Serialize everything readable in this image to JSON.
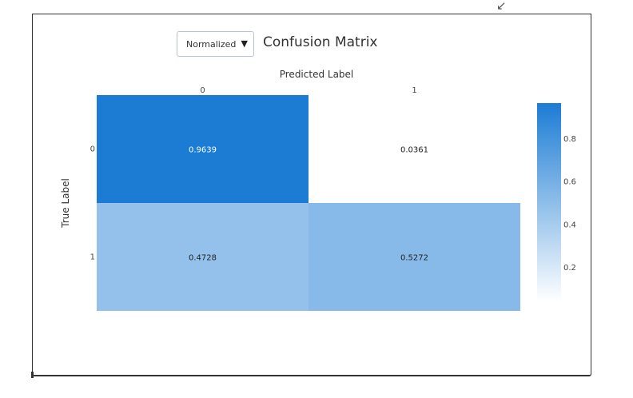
{
  "window": {
    "resize_glyph": "↙"
  },
  "controls": {
    "normalize_select": {
      "selected": "Normalized"
    }
  },
  "chart_data": {
    "type": "heatmap",
    "title": "Confusion Matrix",
    "xlabel": "Predicted Label",
    "ylabel": "True Label",
    "x_categories": [
      "0",
      "1"
    ],
    "y_categories": [
      "0",
      "1"
    ],
    "z": [
      [
        0.9639,
        0.0361
      ],
      [
        0.4728,
        0.5272
      ]
    ],
    "colorscale": {
      "low": "#ffffff",
      "high": "#1c7cd4",
      "range": [
        0.0361,
        0.9639
      ],
      "ticks": [
        0.2,
        0.4,
        0.6,
        0.8
      ]
    },
    "text_colors": {
      "dark_cell": "#ffffff",
      "light_cell": "#222222"
    }
  }
}
